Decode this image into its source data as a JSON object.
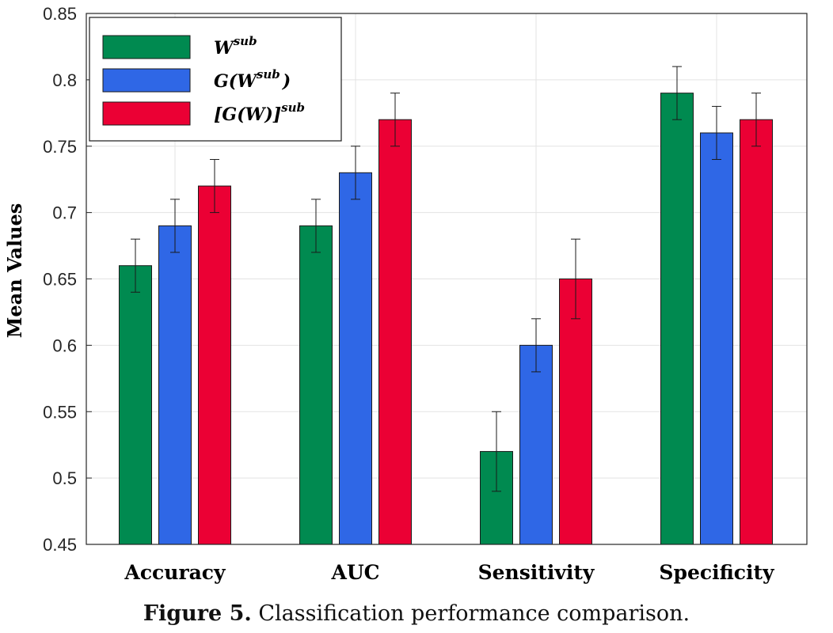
{
  "chart_data": {
    "type": "bar",
    "categories": [
      "Accuracy",
      "AUC",
      "Sensitivity",
      "Specificity"
    ],
    "series": [
      {
        "name": "W^sub",
        "label_base": "W",
        "label_sup": "sub",
        "color": "#008a50",
        "values": [
          0.66,
          0.69,
          0.52,
          0.79
        ],
        "errors": [
          0.02,
          0.02,
          0.03,
          0.02
        ]
      },
      {
        "name": "G(W^sub)",
        "label_base": "G(W",
        "label_sup": "sub",
        "label_tail": ")",
        "color": "#2f67e6",
        "values": [
          0.69,
          0.73,
          0.6,
          0.76
        ],
        "errors": [
          0.02,
          0.02,
          0.02,
          0.02
        ]
      },
      {
        "name": "[G(W)]^sub",
        "label_base": "[G(W)]",
        "label_sup": "sub",
        "color": "#eb0034",
        "values": [
          0.72,
          0.77,
          0.65,
          0.77
        ],
        "errors": [
          0.02,
          0.02,
          0.03,
          0.02
        ]
      }
    ],
    "ylabel": "Mean Values",
    "xlabel": "",
    "ylim": [
      0.45,
      0.85
    ],
    "yticks": [
      "0.45",
      "0.5",
      "0.55",
      "0.6",
      "0.65",
      "0.7",
      "0.75",
      "0.8",
      "0.85"
    ],
    "grid": true,
    "legend_position": "top-left"
  },
  "caption": {
    "label": "Figure 5.",
    "text": " Classification performance comparison."
  }
}
